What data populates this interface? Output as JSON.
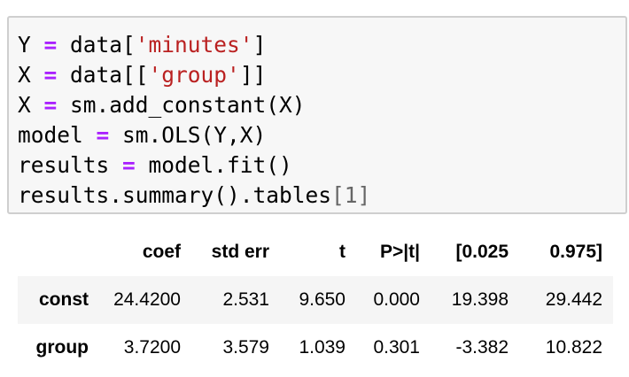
{
  "code_cell": {
    "lines": [
      {
        "var": "Y ",
        "op": "=",
        "rest_a": " data[",
        "str": "'minutes'",
        "rest_b": "]"
      },
      {
        "var": "X ",
        "op": "=",
        "rest_a": " data[[",
        "str": "'group'",
        "rest_b": "]]"
      },
      {
        "var": "X ",
        "op": "=",
        "rest_a": " sm.add_constant(X)",
        "str": "",
        "rest_b": ""
      },
      {
        "var": "model ",
        "op": "=",
        "rest_a": " sm.OLS(Y,X)",
        "str": "",
        "rest_b": ""
      },
      {
        "var": "results ",
        "op": "=",
        "rest_a": " model.fit()",
        "str": "",
        "rest_b": ""
      }
    ],
    "last_line": {
      "text": "results.summary().tables",
      "bracket_open": "[",
      "index": "1",
      "bracket_close": "]"
    }
  },
  "summary_table": {
    "headers": [
      "",
      "coef",
      "std err",
      "t",
      "P>|t|",
      "[0.025",
      "0.975]"
    ],
    "rows": [
      {
        "label": "const",
        "values": [
          "24.4200",
          "2.531",
          "9.650",
          "0.000",
          "19.398",
          "29.442"
        ]
      },
      {
        "label": "group",
        "values": [
          "3.7200",
          "3.579",
          "1.039",
          "0.301",
          "-3.382",
          "10.822"
        ]
      }
    ]
  }
}
